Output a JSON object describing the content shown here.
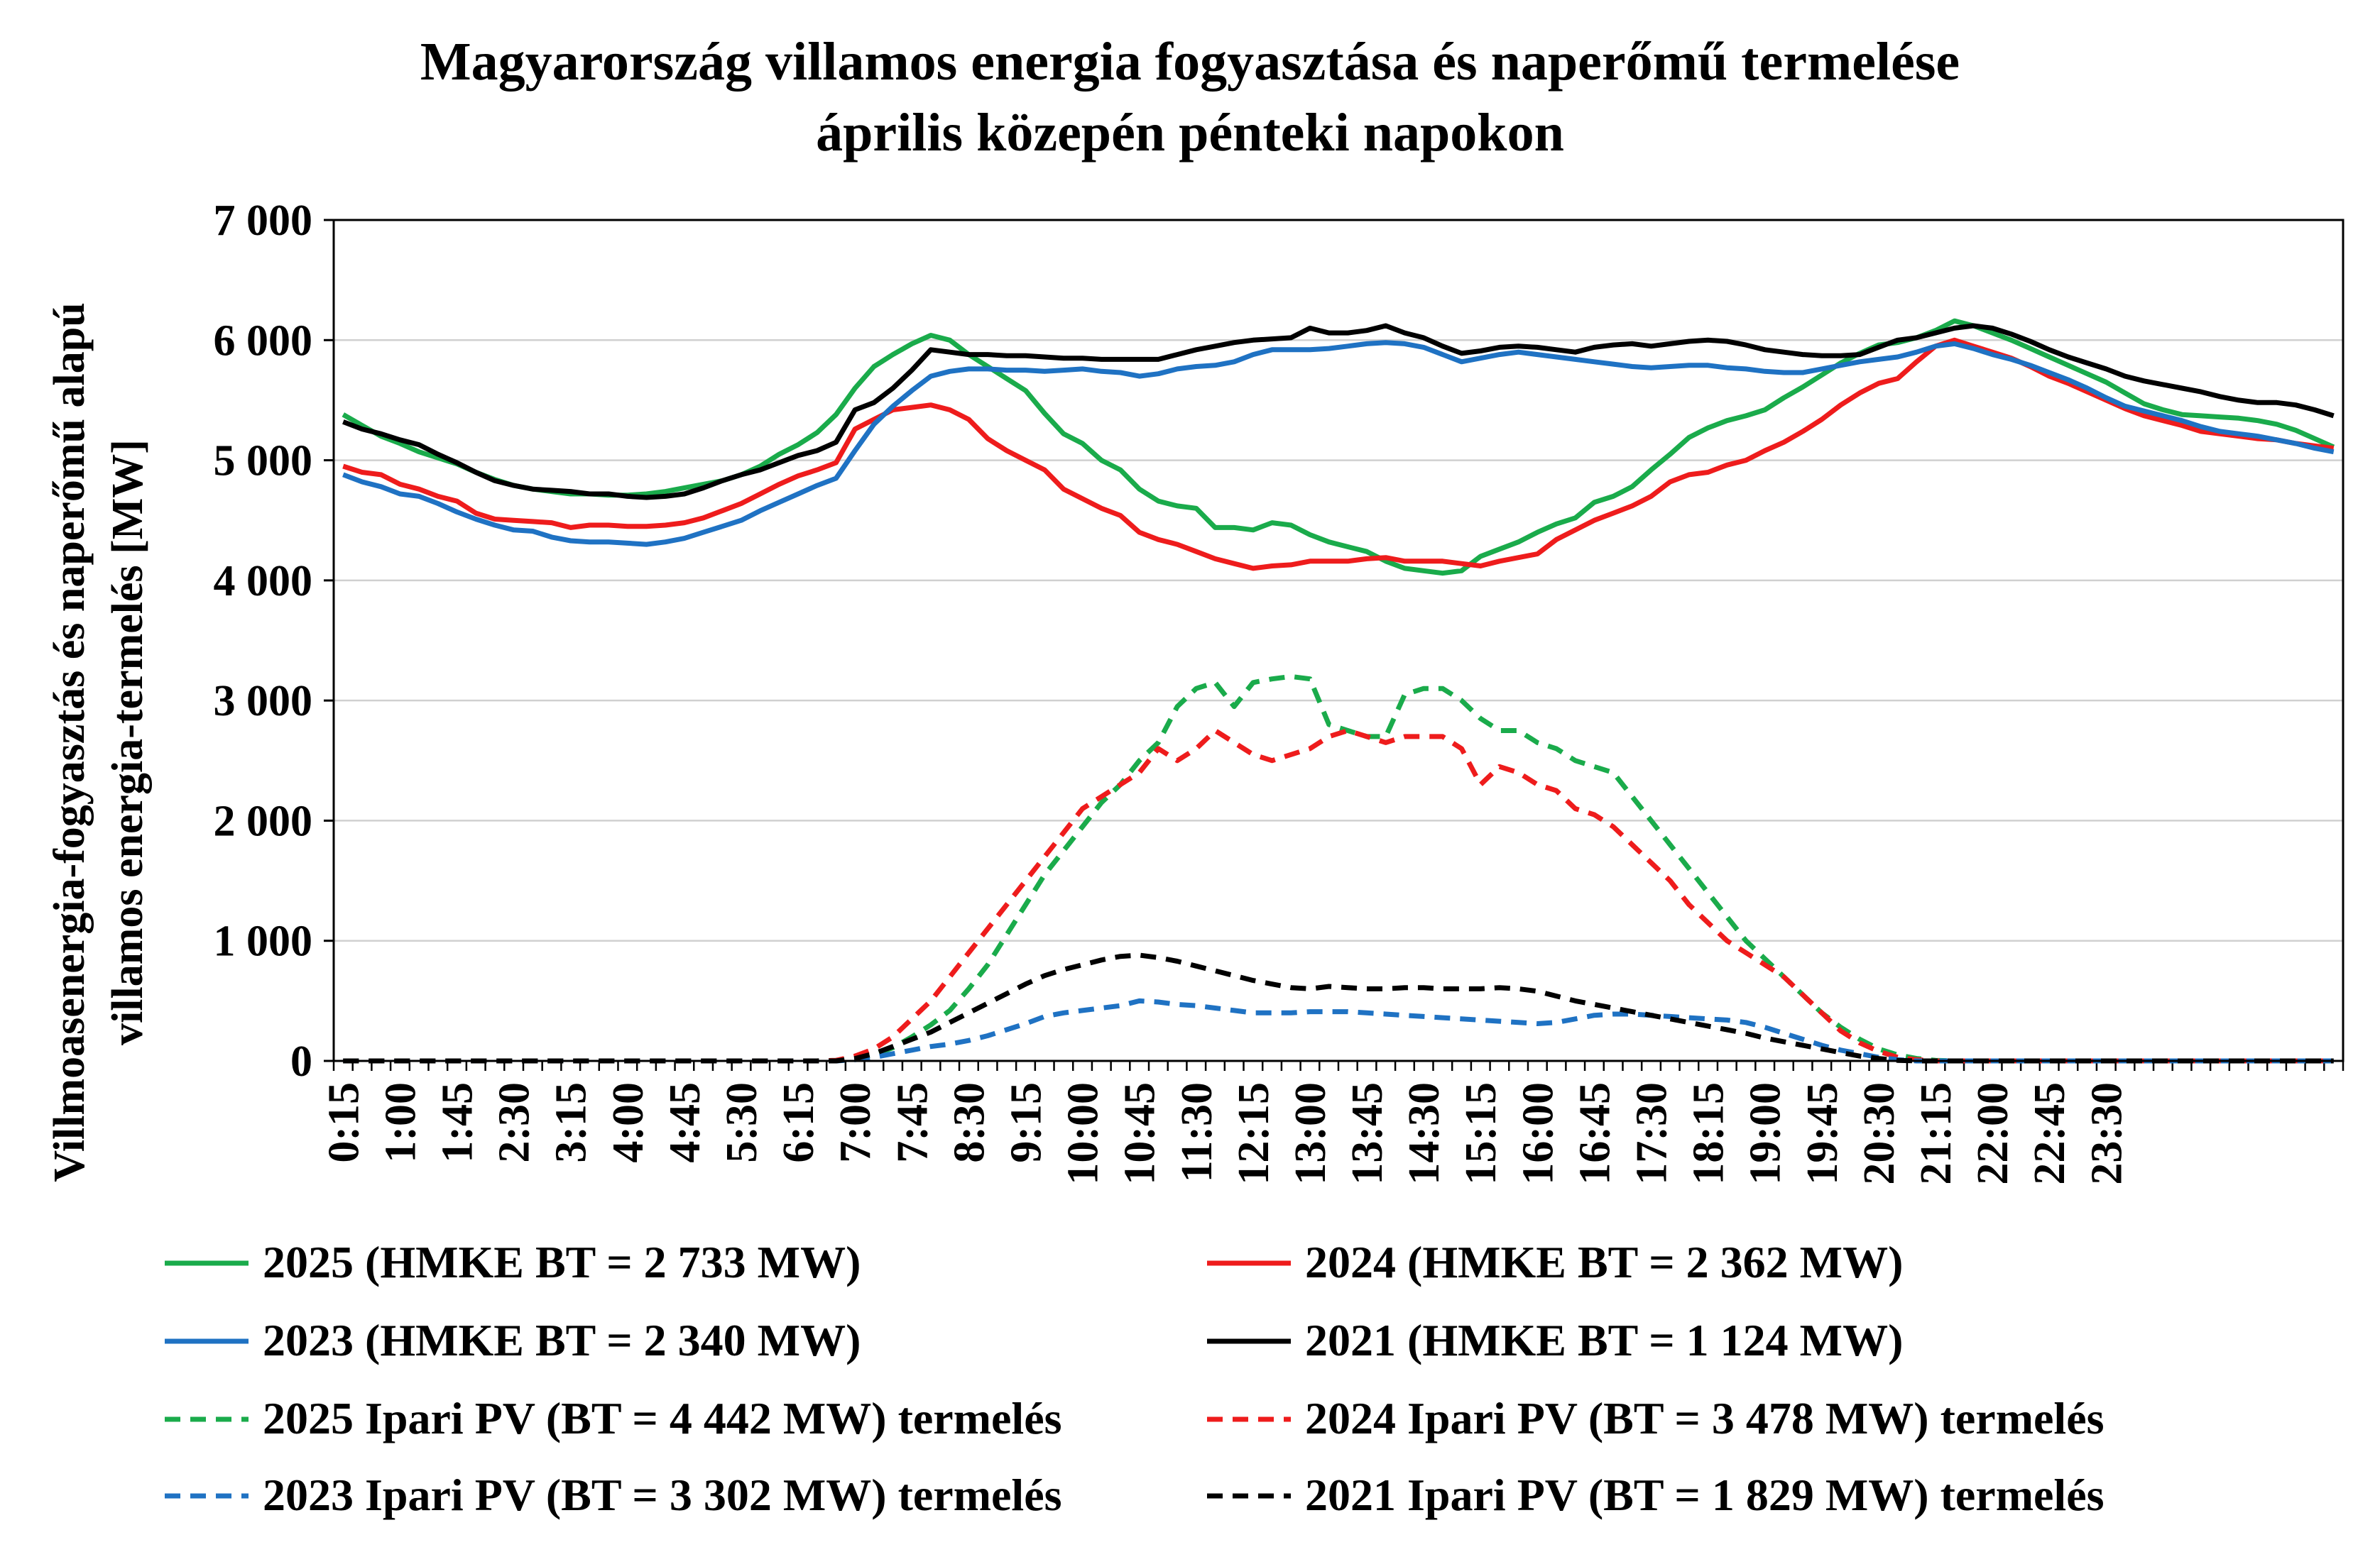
{
  "chart_data": {
    "type": "line",
    "title": [
      "Magyarország villamos energia fogyasztása és naperőmű termelése",
      "április közepén pénteki napokon"
    ],
    "ylabel": [
      "Villmoasenergia-fogyasztás és naperőmű alapú",
      "villamos energia-termelés [MW]"
    ],
    "xlabel": "",
    "ylim": [
      0,
      7000
    ],
    "yticks": [
      0,
      1000,
      2000,
      3000,
      4000,
      5000,
      6000,
      7000
    ],
    "ytick_labels": [
      "0",
      "1 000",
      "2 000",
      "3 000",
      "4 000",
      "5 000",
      "6 000",
      "7 000"
    ],
    "xtick_labels": [
      "0:15",
      "1:00",
      "1:45",
      "2:30",
      "3:15",
      "4:00",
      "4:45",
      "5:30",
      "6:15",
      "7:00",
      "7:45",
      "8:30",
      "9:15",
      "10:00",
      "10:45",
      "11:30",
      "12:15",
      "13:00",
      "13:45",
      "14:30",
      "15:15",
      "16:00",
      "16:45",
      "17:30",
      "18:15",
      "19:00",
      "19:45",
      "20:30",
      "21:15",
      "22:00",
      "22:45",
      "23:30"
    ],
    "x_interval_minutes": 15,
    "x_start": "0:15",
    "grid": true,
    "legend_position": "bottom",
    "colors": {
      "green": "#1aab4b",
      "red": "#ee1c1c",
      "blue": "#1f72c3",
      "black": "#000000"
    },
    "series": [
      {
        "name": "2025 (HMKE BT = 2 733 MW)",
        "color": "#1aab4b",
        "dash": false,
        "values": [
          5380,
          5290,
          5200,
          5140,
          5070,
          5020,
          4970,
          4900,
          4840,
          4790,
          4760,
          4740,
          4720,
          4720,
          4710,
          4710,
          4720,
          4740,
          4770,
          4800,
          4830,
          4880,
          4950,
          5050,
          5130,
          5230,
          5380,
          5600,
          5780,
          5880,
          5970,
          6040,
          6000,
          5880,
          5780,
          5680,
          5580,
          5390,
          5220,
          5140,
          5000,
          4920,
          4760,
          4660,
          4620,
          4600,
          4440,
          4440,
          4420,
          4480,
          4460,
          4380,
          4320,
          4280,
          4240,
          4160,
          4100,
          4080,
          4060,
          4080,
          4200,
          4260,
          4320,
          4400,
          4470,
          4520,
          4650,
          4700,
          4780,
          4920,
          5050,
          5190,
          5270,
          5330,
          5370,
          5420,
          5520,
          5610,
          5710,
          5810,
          5890,
          5960,
          5980,
          6020,
          6080,
          6160,
          6120,
          6060,
          6000,
          5930,
          5860,
          5790,
          5720,
          5650,
          5560,
          5470,
          5420,
          5380,
          5370,
          5360,
          5350,
          5330,
          5300,
          5250,
          5180,
          5110
        ]
      },
      {
        "name": "2024 (HMKE BT = 2 362 MW)",
        "color": "#ee1c1c",
        "dash": false,
        "values": [
          4950,
          4900,
          4880,
          4800,
          4760,
          4700,
          4660,
          4560,
          4510,
          4500,
          4490,
          4480,
          4440,
          4460,
          4460,
          4450,
          4450,
          4460,
          4480,
          4520,
          4580,
          4640,
          4720,
          4800,
          4870,
          4920,
          4980,
          5260,
          5340,
          5420,
          5440,
          5460,
          5420,
          5340,
          5180,
          5080,
          5000,
          4920,
          4760,
          4680,
          4600,
          4540,
          4400,
          4340,
          4300,
          4240,
          4180,
          4140,
          4100,
          4120,
          4130,
          4160,
          4160,
          4160,
          4180,
          4190,
          4160,
          4160,
          4160,
          4140,
          4120,
          4160,
          4190,
          4220,
          4340,
          4420,
          4500,
          4560,
          4620,
          4700,
          4820,
          4880,
          4900,
          4960,
          5000,
          5080,
          5150,
          5240,
          5340,
          5460,
          5560,
          5640,
          5680,
          5820,
          5950,
          6000,
          5950,
          5900,
          5850,
          5780,
          5700,
          5640,
          5570,
          5500,
          5430,
          5370,
          5330,
          5290,
          5240,
          5220,
          5200,
          5180,
          5170,
          5140,
          5120,
          5100
        ]
      },
      {
        "name": "2023 (HMKE BT = 2 340 MW)",
        "color": "#1f72c3",
        "dash": false,
        "values": [
          4880,
          4820,
          4780,
          4720,
          4700,
          4640,
          4570,
          4510,
          4460,
          4420,
          4410,
          4360,
          4330,
          4320,
          4320,
          4310,
          4300,
          4320,
          4350,
          4400,
          4450,
          4500,
          4580,
          4650,
          4720,
          4790,
          4850,
          5080,
          5300,
          5450,
          5580,
          5700,
          5740,
          5760,
          5760,
          5750,
          5750,
          5740,
          5750,
          5760,
          5740,
          5730,
          5700,
          5720,
          5760,
          5780,
          5790,
          5820,
          5880,
          5920,
          5920,
          5920,
          5930,
          5950,
          5970,
          5980,
          5970,
          5940,
          5880,
          5820,
          5850,
          5880,
          5900,
          5880,
          5860,
          5840,
          5820,
          5800,
          5780,
          5770,
          5780,
          5790,
          5790,
          5770,
          5760,
          5740,
          5730,
          5730,
          5760,
          5790,
          5820,
          5840,
          5860,
          5900,
          5950,
          5970,
          5930,
          5880,
          5840,
          5790,
          5730,
          5670,
          5600,
          5520,
          5450,
          5410,
          5370,
          5330,
          5280,
          5240,
          5220,
          5200,
          5170,
          5140,
          5100,
          5070
        ]
      },
      {
        "name": "2021 (HMKE BT = 1 124 MW)",
        "color": "#000000",
        "dash": false,
        "values": [
          5320,
          5260,
          5220,
          5170,
          5130,
          5050,
          4980,
          4900,
          4830,
          4790,
          4760,
          4750,
          4740,
          4720,
          4720,
          4700,
          4690,
          4700,
          4720,
          4770,
          4830,
          4880,
          4920,
          4980,
          5040,
          5080,
          5150,
          5420,
          5480,
          5600,
          5750,
          5920,
          5900,
          5880,
          5880,
          5870,
          5870,
          5860,
          5850,
          5850,
          5840,
          5840,
          5840,
          5840,
          5880,
          5920,
          5950,
          5980,
          6000,
          6010,
          6020,
          6100,
          6060,
          6060,
          6080,
          6120,
          6060,
          6020,
          5950,
          5890,
          5910,
          5940,
          5950,
          5940,
          5920,
          5900,
          5940,
          5960,
          5970,
          5950,
          5970,
          5990,
          6000,
          5990,
          5960,
          5920,
          5900,
          5880,
          5870,
          5870,
          5880,
          5940,
          6000,
          6020,
          6060,
          6100,
          6120,
          6100,
          6050,
          5990,
          5920,
          5860,
          5810,
          5760,
          5700,
          5660,
          5630,
          5600,
          5570,
          5530,
          5500,
          5480,
          5480,
          5460,
          5420,
          5370
        ]
      },
      {
        "name": "2025 Ipari PV (BT =  4 442 MW) termelés",
        "color": "#1aab4b",
        "dash": true,
        "values": [
          0,
          0,
          0,
          0,
          0,
          0,
          0,
          0,
          0,
          0,
          0,
          0,
          0,
          0,
          0,
          0,
          0,
          0,
          0,
          0,
          0,
          0,
          0,
          0,
          0,
          0,
          5,
          20,
          50,
          110,
          200,
          300,
          420,
          600,
          800,
          1050,
          1300,
          1550,
          1750,
          1950,
          2150,
          2300,
          2500,
          2650,
          2950,
          3100,
          3150,
          2950,
          3150,
          3180,
          3200,
          3180,
          2800,
          2750,
          2700,
          2700,
          3050,
          3100,
          3100,
          3000,
          2850,
          2750,
          2750,
          2650,
          2600,
          2500,
          2450,
          2400,
          2200,
          2000,
          1800,
          1600,
          1400,
          1200,
          1000,
          850,
          700,
          550,
          400,
          280,
          180,
          100,
          50,
          20,
          5,
          0,
          0,
          0,
          0,
          0,
          0,
          0,
          0,
          0,
          0,
          0,
          0,
          0,
          0,
          0,
          0,
          0,
          0,
          0,
          0,
          0
        ]
      },
      {
        "name": "2024 Ipari PV (BT =  3 478 MW) termelés",
        "color": "#ee1c1c",
        "dash": true,
        "values": [
          0,
          0,
          0,
          0,
          0,
          0,
          0,
          0,
          0,
          0,
          0,
          0,
          0,
          0,
          0,
          0,
          0,
          0,
          0,
          0,
          0,
          0,
          0,
          0,
          0,
          0,
          5,
          40,
          100,
          200,
          350,
          500,
          700,
          900,
          1100,
          1300,
          1500,
          1700,
          1900,
          2100,
          2200,
          2300,
          2400,
          2600,
          2500,
          2600,
          2750,
          2650,
          2550,
          2500,
          2550,
          2600,
          2700,
          2750,
          2700,
          2650,
          2700,
          2700,
          2700,
          2600,
          2300,
          2450,
          2400,
          2300,
          2250,
          2100,
          2050,
          1950,
          1800,
          1650,
          1500,
          1300,
          1150,
          1000,
          900,
          800,
          700,
          550,
          400,
          250,
          150,
          80,
          30,
          10,
          0,
          0,
          0,
          0,
          0,
          0,
          0,
          0,
          0,
          0,
          0,
          0,
          0,
          0,
          0,
          0,
          0,
          0,
          0,
          0,
          0,
          0
        ]
      },
      {
        "name": "2023 Ipari PV (BT =  3 302 MW) termelés",
        "color": "#1f72c3",
        "dash": true,
        "values": [
          0,
          0,
          0,
          0,
          0,
          0,
          0,
          0,
          0,
          0,
          0,
          0,
          0,
          0,
          0,
          0,
          0,
          0,
          0,
          0,
          0,
          0,
          0,
          0,
          0,
          0,
          0,
          10,
          30,
          60,
          90,
          120,
          140,
          170,
          210,
          260,
          310,
          370,
          400,
          420,
          440,
          460,
          500,
          490,
          470,
          460,
          440,
          420,
          400,
          400,
          400,
          410,
          410,
          410,
          400,
          390,
          380,
          370,
          360,
          350,
          340,
          330,
          320,
          310,
          320,
          350,
          380,
          390,
          390,
          380,
          370,
          360,
          350,
          340,
          320,
          280,
          230,
          180,
          130,
          90,
          60,
          30,
          10,
          0,
          0,
          0,
          0,
          0,
          0,
          0,
          0,
          0,
          0,
          0,
          0,
          0,
          0,
          0,
          0,
          0,
          0,
          0,
          0,
          0,
          0,
          0
        ]
      },
      {
        "name": "2021 Ipari PV (BT =  1 829 MW) termelés",
        "color": "#000000",
        "dash": true,
        "values": [
          0,
          0,
          0,
          0,
          0,
          0,
          0,
          0,
          0,
          0,
          0,
          0,
          0,
          0,
          0,
          0,
          0,
          0,
          0,
          0,
          0,
          0,
          0,
          0,
          0,
          0,
          0,
          20,
          60,
          120,
          180,
          240,
          320,
          400,
          480,
          560,
          640,
          710,
          760,
          800,
          840,
          870,
          880,
          860,
          830,
          790,
          750,
          710,
          670,
          640,
          610,
          600,
          620,
          610,
          600,
          600,
          610,
          610,
          600,
          600,
          600,
          610,
          600,
          580,
          540,
          500,
          470,
          440,
          410,
          380,
          350,
          320,
          290,
          260,
          230,
          190,
          160,
          130,
          100,
          70,
          40,
          20,
          5,
          0,
          0,
          0,
          0,
          0,
          0,
          0,
          0,
          0,
          0,
          0,
          0,
          0,
          0,
          0,
          0,
          0,
          0,
          0,
          0,
          0,
          0,
          0
        ]
      }
    ]
  }
}
